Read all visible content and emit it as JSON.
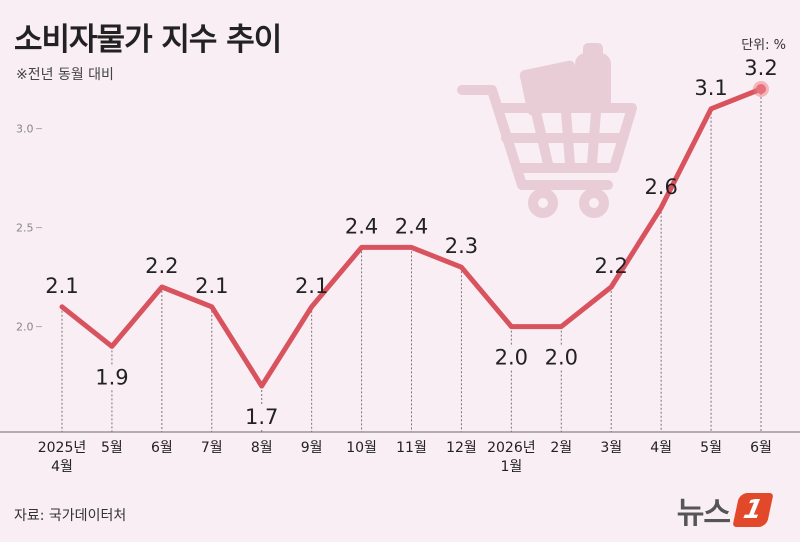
{
  "header": {
    "title": "소비자물가 지수 추이",
    "subtitle": "※전년 동월 대비",
    "unit": "단위: %"
  },
  "footer": {
    "source": "자료: 국가데이터처",
    "logo_text": "뉴스",
    "logo_badge": "1"
  },
  "colors": {
    "background": "#f9eef3",
    "line": "#d9535f",
    "accent_dot": "#e8707b",
    "cart_icon": "#e9cdd6"
  },
  "icons": [
    "shopping-cart-icon"
  ],
  "chart_data": {
    "type": "line",
    "title": "소비자물가 지수 추이",
    "subtitle": "※전년 동월 대비",
    "unit": "단위: %",
    "categories": [
      "2025년\n4월",
      "5월",
      "6월",
      "7월",
      "8월",
      "9월",
      "10월",
      "11월",
      "12월",
      "2026년\n1월",
      "2월",
      "3월",
      "4월",
      "5월",
      "6월"
    ],
    "series": [
      {
        "values": [
          2.1,
          1.9,
          2.2,
          2.1,
          1.7,
          2.1,
          2.4,
          2.4,
          2.3,
          2.0,
          2.0,
          2.2,
          2.6,
          3.1,
          3.2
        ]
      }
    ],
    "data_labels": [
      "2.1",
      "1.9",
      "2.2",
      "2.1",
      "1.7",
      "2.1",
      "2.4",
      "2.4",
      "2.3",
      "2.0",
      "2.0",
      "2.2",
      "2.6",
      "3.1",
      "3.2"
    ],
    "yticks": [
      "3.0",
      "2.5",
      "2.0"
    ],
    "ytick_values": [
      3.0,
      2.5,
      2.0
    ],
    "ylim": [
      1.5,
      3.3
    ],
    "label_position": [
      "above",
      "below",
      "above",
      "above",
      "below",
      "above",
      "above",
      "above",
      "above",
      "below",
      "below",
      "above",
      "above",
      "above",
      "above"
    ],
    "highlight_last": true,
    "grid": false,
    "legend": "none"
  }
}
